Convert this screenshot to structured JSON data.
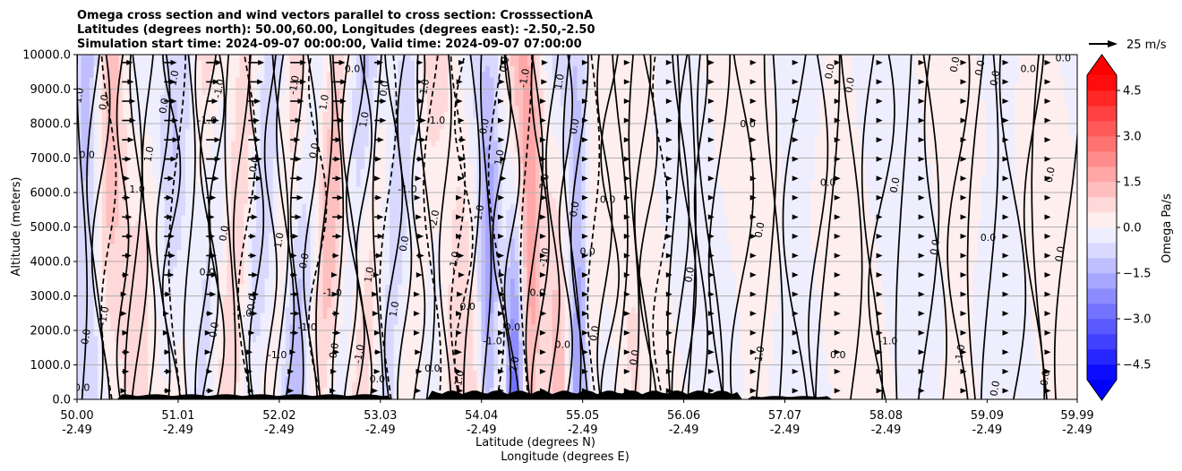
{
  "chart_data": {
    "type": "heatmap",
    "title_lines": [
      "Omega cross section and wind vectors parallel to cross section: CrosssectionA",
      "Latitudes (degrees north): 50.00,60.00, Longitudes (degrees east): -2.50,-2.50",
      "Simulation start time: 2024-09-07 00:00:00, Valid time: 2024-09-07 07:00:00"
    ],
    "ylabel": "Altitude (meters)",
    "xlabel_lines": [
      "Latitude (degrees N)",
      "Longitude (degrees E)"
    ],
    "ylim": [
      0,
      10000
    ],
    "xlim": [
      50.0,
      59.99
    ],
    "yticks": [
      "0.0",
      "1000.0",
      "2000.0",
      "3000.0",
      "4000.0",
      "5000.0",
      "6000.0",
      "7000.0",
      "8000.0",
      "9000.0",
      "10000.0"
    ],
    "ytick_values": [
      0,
      1000,
      2000,
      3000,
      4000,
      5000,
      6000,
      7000,
      8000,
      9000,
      10000
    ],
    "xtick_values": [
      50.0,
      51.01,
      52.02,
      53.03,
      54.04,
      55.05,
      56.06,
      57.07,
      58.08,
      59.09,
      59.99
    ],
    "xtick_lat_labels": [
      "50.00",
      "51.01",
      "52.02",
      "53.03",
      "54.04",
      "55.05",
      "56.06",
      "57.07",
      "58.08",
      "59.09",
      "59.99"
    ],
    "xtick_lon_labels": [
      "-2.49",
      "-2.49",
      "-2.49",
      "-2.49",
      "-2.49",
      "-2.49",
      "-2.49",
      "-2.49",
      "-2.49",
      "-2.49",
      "-2.49"
    ],
    "grid": "horizontal",
    "colorbar": {
      "label": "Omega Pa/s",
      "range": [
        -5.0,
        5.0
      ],
      "step": 0.5,
      "extend": "both",
      "ticks": [
        4.5,
        3.0,
        1.5,
        0.0,
        -1.5,
        -3.0,
        -4.5
      ],
      "tick_labels": [
        "4.5",
        "3.0",
        "1.5",
        "0.0",
        "−1.5",
        "−3.0",
        "−4.5"
      ],
      "neg_color": "#0000ff",
      "pos_color": "#ff0000",
      "mid_color": "#ffffff"
    },
    "quiver_key": {
      "label": "25 m/s",
      "speed_ms": 25
    },
    "contour_labels": [
      {
        "text": "0.0",
        "lat": 50.05,
        "alt": 250
      },
      {
        "text": "0.0",
        "lat": 50.12,
        "alt": 1800
      },
      {
        "text": "-1.0",
        "lat": 50.3,
        "alt": 2400
      },
      {
        "text": "0.0",
        "lat": 50.1,
        "alt": 7000
      },
      {
        "text": "0.0",
        "lat": 50.3,
        "alt": 8600
      },
      {
        "text": "1.0",
        "lat": 50.05,
        "alt": 8800
      },
      {
        "text": "1.0",
        "lat": 50.6,
        "alt": 6000
      },
      {
        "text": "1.0",
        "lat": 50.75,
        "alt": 7100
      },
      {
        "text": "0.0",
        "lat": 50.9,
        "alt": 8500
      },
      {
        "text": "-1.0",
        "lat": 51.3,
        "alt": 8000
      },
      {
        "text": "1.0",
        "lat": 51.0,
        "alt": 9300
      },
      {
        "text": "-1.0",
        "lat": 51.45,
        "alt": 9000
      },
      {
        "text": "0.0",
        "lat": 51.3,
        "alt": 3600
      },
      {
        "text": "0.0",
        "lat": 51.4,
        "alt": 2000
      },
      {
        "text": "0.0",
        "lat": 51.5,
        "alt": 4800
      },
      {
        "text": "-1.0",
        "lat": 51.65,
        "alt": 2400
      },
      {
        "text": "0.0",
        "lat": 51.8,
        "alt": 6800
      },
      {
        "text": "0.0",
        "lat": 51.78,
        "alt": 2800
      },
      {
        "text": "-1.0",
        "lat": 52.0,
        "alt": 1200
      },
      {
        "text": "0.0",
        "lat": 52.3,
        "alt": 4000
      },
      {
        "text": "1.0",
        "lat": 52.05,
        "alt": 4600
      },
      {
        "text": "-1.0",
        "lat": 52.3,
        "alt": 2000
      },
      {
        "text": "-1.0",
        "lat": 52.2,
        "alt": 9100
      },
      {
        "text": "0.0",
        "lat": 52.4,
        "alt": 7200
      },
      {
        "text": "-1.0",
        "lat": 52.55,
        "alt": 3000
      },
      {
        "text": "0.0",
        "lat": 52.6,
        "alt": 1400
      },
      {
        "text": "1.0",
        "lat": 52.5,
        "alt": 8600
      },
      {
        "text": "0.0",
        "lat": 52.75,
        "alt": 9500
      },
      {
        "text": "1.0",
        "lat": 52.9,
        "alt": 8100
      },
      {
        "text": "-1.0",
        "lat": 52.85,
        "alt": 1300
      },
      {
        "text": "0.0",
        "lat": 53.0,
        "alt": 500
      },
      {
        "text": "1.0",
        "lat": 52.95,
        "alt": 3600
      },
      {
        "text": "1.0",
        "lat": 53.2,
        "alt": 2600
      },
      {
        "text": "-1.0",
        "lat": 53.3,
        "alt": 6000
      },
      {
        "text": "0.0",
        "lat": 53.3,
        "alt": 4500
      },
      {
        "text": "-1.0",
        "lat": 53.5,
        "alt": 9000
      },
      {
        "text": "1.0",
        "lat": 53.6,
        "alt": 8000
      },
      {
        "text": "0.0",
        "lat": 53.1,
        "alt": 9000
      },
      {
        "text": "-2.0",
        "lat": 53.6,
        "alt": 5200
      },
      {
        "text": "0.0",
        "lat": 53.55,
        "alt": 800
      },
      {
        "text": "-1.0",
        "lat": 53.8,
        "alt": 4000
      },
      {
        "text": "1.0",
        "lat": 53.85,
        "alt": 600
      },
      {
        "text": "0.0",
        "lat": 53.9,
        "alt": 2600
      },
      {
        "text": "1.0",
        "lat": 54.05,
        "alt": 5400
      },
      {
        "text": "0.0",
        "lat": 54.1,
        "alt": 7900
      },
      {
        "text": "-1.0",
        "lat": 54.15,
        "alt": 1600
      },
      {
        "text": "1.0",
        "lat": 54.25,
        "alt": 7000
      },
      {
        "text": "0.0",
        "lat": 54.3,
        "alt": 9700
      },
      {
        "text": "0.0",
        "lat": 54.35,
        "alt": 2000
      },
      {
        "text": "2.0",
        "lat": 54.4,
        "alt": 1000
      },
      {
        "text": "-1.0",
        "lat": 54.5,
        "alt": 9300
      },
      {
        "text": "0.0",
        "lat": 54.6,
        "alt": 3000
      },
      {
        "text": "2.0",
        "lat": 54.7,
        "alt": 6300
      },
      {
        "text": "-1.0",
        "lat": 54.7,
        "alt": 4100
      },
      {
        "text": "0.0",
        "lat": 54.85,
        "alt": 1500
      },
      {
        "text": "1.0",
        "lat": 54.85,
        "alt": 9200
      },
      {
        "text": "0.0",
        "lat": 55.0,
        "alt": 5500
      },
      {
        "text": "0.0",
        "lat": 55.1,
        "alt": 4200
      },
      {
        "text": "0.0",
        "lat": 55.0,
        "alt": 7900
      },
      {
        "text": "0.0",
        "lat": 55.2,
        "alt": 1900
      },
      {
        "text": "0.0",
        "lat": 55.3,
        "alt": 5700
      },
      {
        "text": "0.0",
        "lat": 55.6,
        "alt": 1200
      },
      {
        "text": "0.0",
        "lat": 56.15,
        "alt": 3600
      },
      {
        "text": "0.0",
        "lat": 56.7,
        "alt": 7900
      },
      {
        "text": "0.0",
        "lat": 56.85,
        "alt": 4900
      },
      {
        "text": "1.0",
        "lat": 56.85,
        "alt": 1300
      },
      {
        "text": "0.0",
        "lat": 57.5,
        "alt": 6200
      },
      {
        "text": "0.0",
        "lat": 57.55,
        "alt": 9500
      },
      {
        "text": "0.0",
        "lat": 57.75,
        "alt": 9100
      },
      {
        "text": "0.0",
        "lat": 57.6,
        "alt": 1200
      },
      {
        "text": "0.0",
        "lat": 58.2,
        "alt": 6200
      },
      {
        "text": "0.0",
        "lat": 58.6,
        "alt": 4400
      },
      {
        "text": "-1.0",
        "lat": 58.1,
        "alt": 1600
      },
      {
        "text": "0.0",
        "lat": 58.8,
        "alt": 9700
      },
      {
        "text": "0.0",
        "lat": 59.05,
        "alt": 9600
      },
      {
        "text": "0.0",
        "lat": 59.1,
        "alt": 4600
      },
      {
        "text": "-1.0",
        "lat": 58.85,
        "alt": 1300
      },
      {
        "text": "0.0",
        "lat": 59.2,
        "alt": 9300
      },
      {
        "text": "0.0",
        "lat": 59.5,
        "alt": 9500
      },
      {
        "text": "0.0",
        "lat": 59.75,
        "alt": 6500
      },
      {
        "text": "0.0",
        "lat": 59.85,
        "alt": 4200
      },
      {
        "text": "0.0",
        "lat": 59.85,
        "alt": 9800
      },
      {
        "text": "0.0",
        "lat": 59.7,
        "alt": 600
      },
      {
        "text": "0.0",
        "lat": 59.2,
        "alt": 300
      }
    ]
  }
}
